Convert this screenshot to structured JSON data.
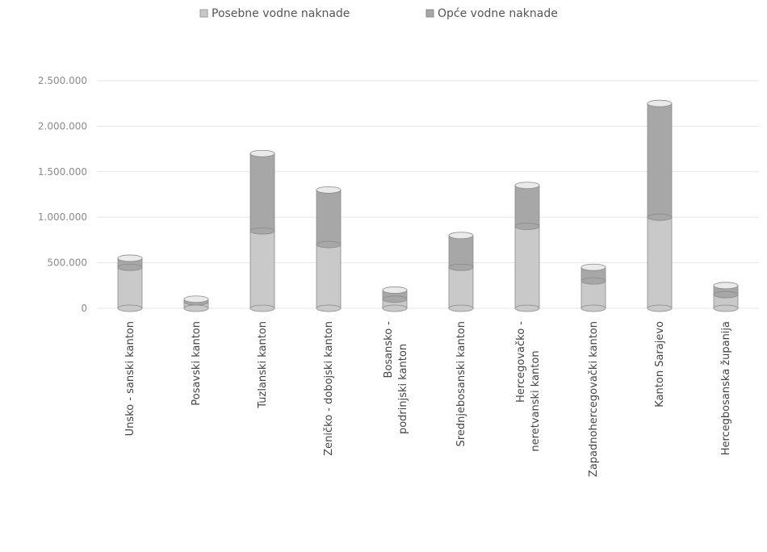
{
  "chart_data": {
    "type": "bar",
    "stacked": true,
    "bar_style": "cylinder",
    "title": "",
    "xlabel": "",
    "ylabel": "",
    "ylim": [
      0,
      2500000
    ],
    "yticks": [
      0,
      500000,
      1000000,
      1500000,
      2000000,
      2500000
    ],
    "ytick_labels": [
      "0",
      "500.000",
      "1.000.000",
      "1.500.000",
      "2.000.000",
      "2.500.000"
    ],
    "grid": true,
    "legend_position": "top",
    "categories": [
      "Unsko - sanski kanton",
      "Posavski kanton",
      "Tuzlanski kanton",
      "Zeničko - dobojski kanton",
      "Bosansko - podrinjski kanton",
      "Srednjebosanski kanton",
      "Hercegovačko - neretvanski kanton",
      "Zapadnohercegovački kanton",
      "Kanton Sarajevo",
      "Hercegbosanska županija"
    ],
    "series": [
      {
        "name": "Posebne vodne naknade",
        "color": "#c9c9c9",
        "values": [
          450000,
          70000,
          850000,
          700000,
          100000,
          450000,
          900000,
          300000,
          1000000,
          150000
        ]
      },
      {
        "name": "Opće vodne naknade",
        "color": "#a7a7a7",
        "values": [
          100000,
          30000,
          850000,
          600000,
          100000,
          350000,
          450000,
          150000,
          1250000,
          100000
        ]
      }
    ]
  }
}
